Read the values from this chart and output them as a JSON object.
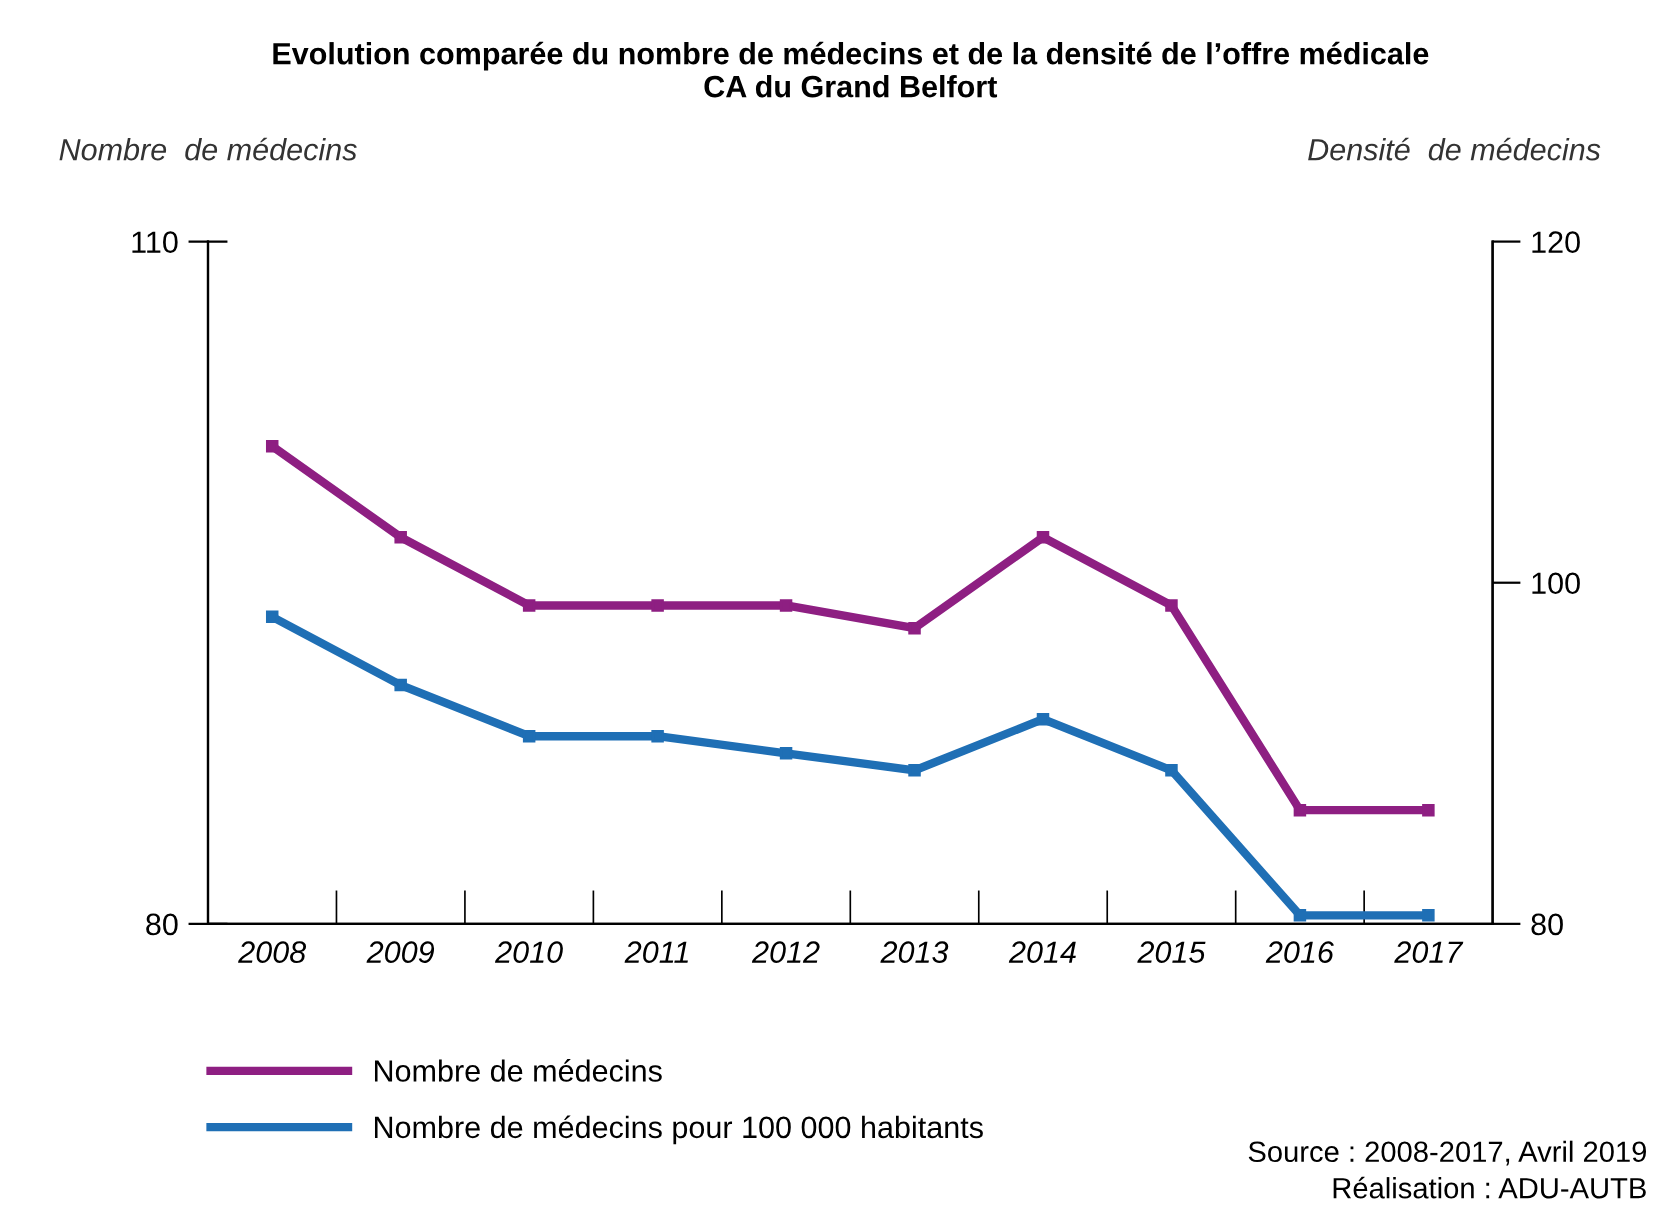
{
  "chart_data": {
    "type": "line",
    "title": "Evolution comparée du nombre de médecins et de la densité de l’offre médicale\nCA du Grand Belfort",
    "ylabel": "Nombre  de médecins",
    "y2label": "Densité  de médecins",
    "categories": [
      "2008",
      "2009",
      "2010",
      "2011",
      "2012",
      "2013",
      "2014",
      "2015",
      "2016",
      "2017"
    ],
    "series": [
      {
        "name": "Nombre de médecins",
        "color": "#8e1f82",
        "values": [
          101,
          97,
          94,
          94,
          94,
          93,
          97,
          94,
          85,
          85
        ]
      },
      {
        "name": "Nombre de médecins pour 100 000 habitants",
        "color": "#1f6fb5",
        "axis": "y2",
        "values": [
          98,
          94,
          91,
          91,
          90,
          89,
          92,
          89,
          80.5,
          80.5
        ]
      }
    ],
    "ylim": [
      80,
      110
    ],
    "yticks": [
      80,
      110
    ],
    "y2lim": [
      80,
      120
    ],
    "y2ticks": [
      80,
      100,
      120
    ],
    "marker": "square",
    "line_style": "solid",
    "grid": false,
    "legend": "bottom",
    "annotations": [
      "Source : 2008-2017, Avril 2019",
      "Réalisation : ADU-AUTB"
    ]
  }
}
